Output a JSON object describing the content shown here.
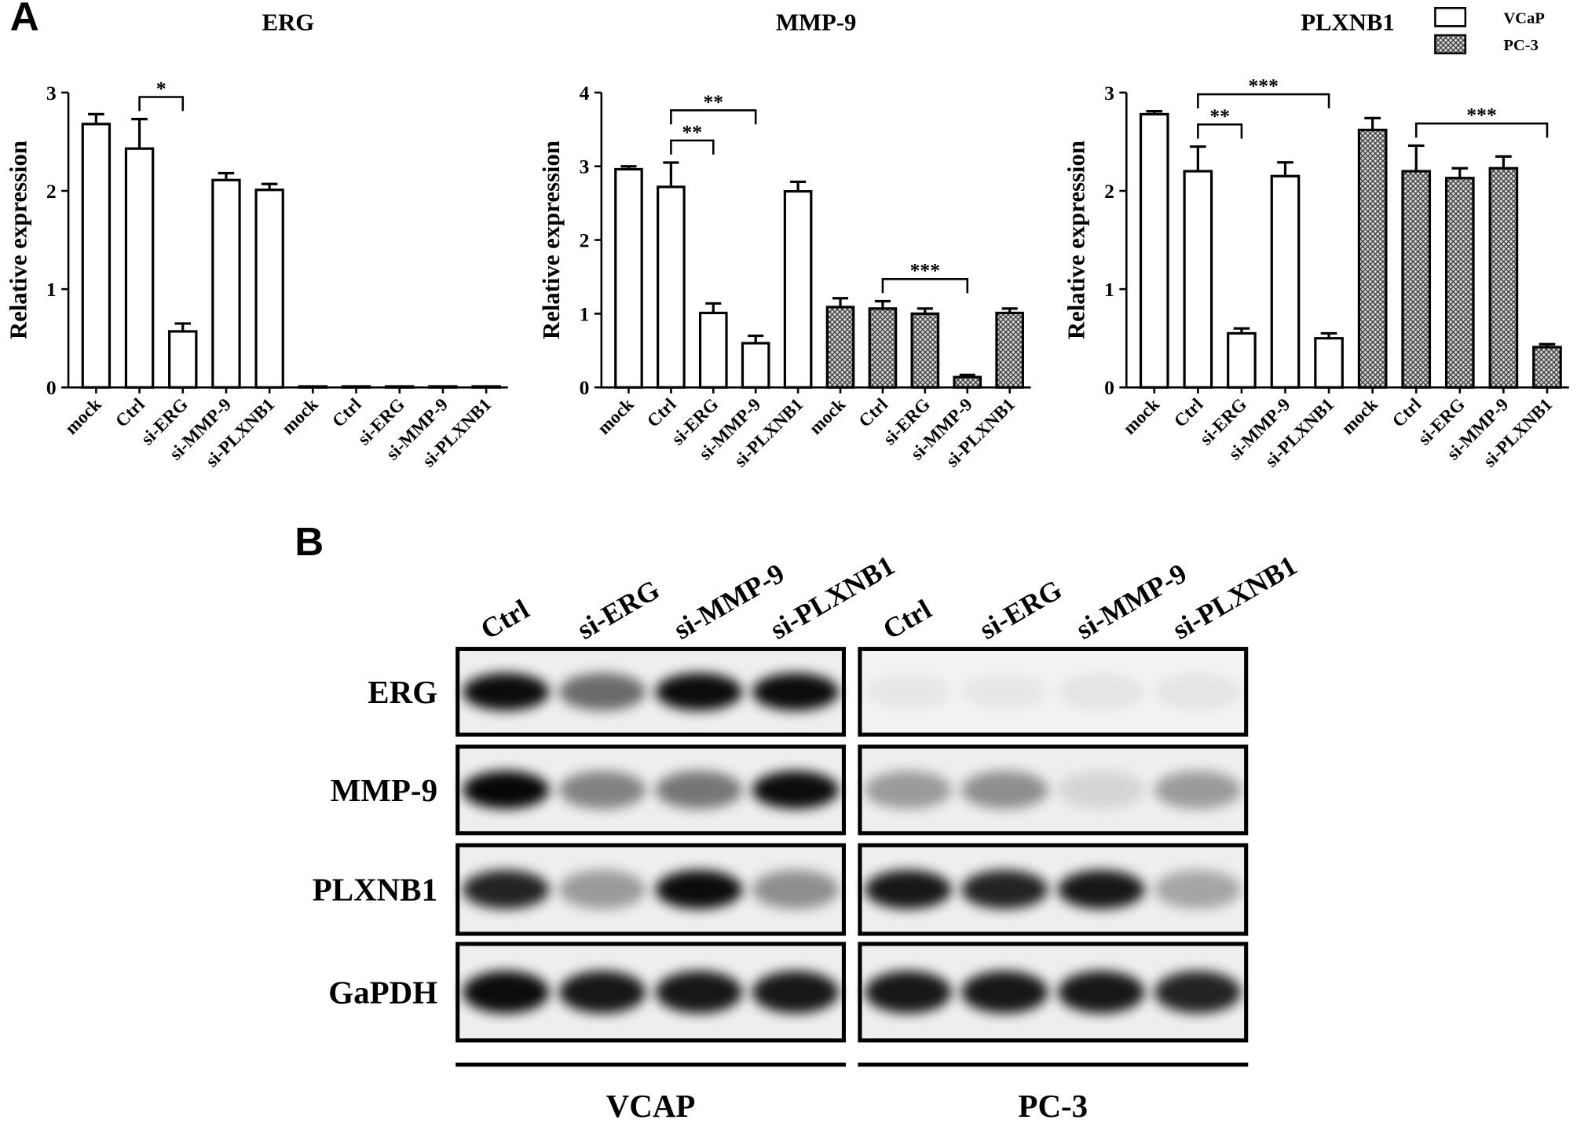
{
  "panel_labels": [
    "A",
    "B"
  ],
  "chart_data": [
    {
      "type": "bar",
      "title": "ERG",
      "y_label": "Relative expression",
      "categories": [
        "mock",
        "Ctrl",
        "si-ERG",
        "si-MMP-9",
        "si-PLXNB1",
        "mock",
        "Ctrl",
        "si-ERG",
        "si-MMP-9",
        "si-PLXNB1"
      ],
      "series": [
        {
          "color": "#ffffff",
          "values": [
            2.68,
            2.43,
            0.57,
            2.11,
            2.01,
            null,
            null,
            null,
            null,
            null
          ],
          "errors": [
            0.1,
            0.3,
            0.08,
            0.07,
            0.06,
            null,
            null,
            null,
            null,
            null
          ]
        },
        {
          "color": "#888888",
          "hatch": true,
          "values": [
            null,
            null,
            null,
            null,
            null,
            0.01,
            0.01,
            0.01,
            0.01,
            0.01
          ],
          "errors": [
            null,
            null,
            null,
            null,
            null,
            0,
            0,
            0,
            0,
            0
          ]
        }
      ],
      "ylim": [
        0,
        3
      ],
      "yticks": [
        0,
        1,
        2,
        3
      ],
      "brackets": [
        {
          "between": [
            1,
            2
          ],
          "label": "*"
        }
      ]
    },
    {
      "type": "bar",
      "title": "MMP-9",
      "y_label": "Relative expression",
      "categories": [
        "mock",
        "Ctrl",
        "si-ERG",
        "si-MMP-9",
        "si-PLXNB1",
        "mock",
        "Ctrl",
        "si-ERG",
        "si-MMP-9",
        "si-PLXNB1"
      ],
      "series": [
        {
          "color": "#ffffff",
          "values": [
            2.96,
            2.72,
            1.01,
            0.6,
            2.66,
            null,
            null,
            null,
            null,
            null
          ],
          "errors": [
            0.04,
            0.33,
            0.13,
            0.1,
            0.13,
            null,
            null,
            null,
            null,
            null
          ]
        },
        {
          "color": "#888888",
          "hatch": true,
          "values": [
            null,
            null,
            null,
            null,
            null,
            1.09,
            1.07,
            1.0,
            0.14,
            1.01
          ],
          "errors": [
            null,
            null,
            null,
            null,
            null,
            0.12,
            0.1,
            0.07,
            0.03,
            0.06
          ]
        }
      ],
      "ylim": [
        0,
        4
      ],
      "yticks": [
        0,
        1,
        2,
        3,
        4
      ],
      "brackets": [
        {
          "between": [
            1,
            2
          ],
          "label": "**"
        },
        {
          "between": [
            1,
            3
          ],
          "label": "**"
        },
        {
          "between": [
            6,
            8
          ],
          "label": "***"
        }
      ]
    },
    {
      "type": "bar",
      "title": "PLXNB1",
      "y_label": "Relative expression",
      "categories": [
        "mock",
        "Ctrl",
        "si-ERG",
        "si-MMP-9",
        "si-PLXNB1",
        "mock",
        "Ctrl",
        "si-ERG",
        "si-MMP-9",
        "si-PLXNB1"
      ],
      "series": [
        {
          "name": "VCaP",
          "color": "#ffffff",
          "values": [
            2.78,
            2.2,
            0.55,
            2.15,
            0.5,
            null,
            null,
            null,
            null,
            null
          ],
          "errors": [
            0.03,
            0.25,
            0.05,
            0.14,
            0.05,
            null,
            null,
            null,
            null,
            null
          ]
        },
        {
          "name": "PC-3",
          "color": "#888888",
          "hatch": true,
          "values": [
            null,
            null,
            null,
            null,
            null,
            2.62,
            2.2,
            2.13,
            2.23,
            0.41
          ],
          "errors": [
            null,
            null,
            null,
            null,
            null,
            0.12,
            0.26,
            0.1,
            0.12,
            0.03
          ]
        }
      ],
      "ylim": [
        0,
        3
      ],
      "yticks": [
        0,
        1,
        2,
        3
      ],
      "brackets": [
        {
          "between": [
            1,
            2
          ],
          "label": "**"
        },
        {
          "between": [
            1,
            4
          ],
          "label": "***"
        },
        {
          "between": [
            6,
            9
          ],
          "label": "***"
        }
      ]
    }
  ],
  "blot": {
    "lanes": [
      "Ctrl",
      "si-ERG",
      "si-MMP-9",
      "si-PLXNB1"
    ],
    "groups": [
      "VCAP",
      "PC-3"
    ],
    "rows": [
      {
        "label": "ERG",
        "bands": [
          [
            0.95,
            0.55,
            0.95,
            0.95
          ],
          [
            0.04,
            0.04,
            0.05,
            0.05
          ]
        ]
      },
      {
        "label": "MMP-9",
        "bands": [
          [
            0.97,
            0.45,
            0.5,
            0.95
          ],
          [
            0.35,
            0.4,
            0.1,
            0.35
          ]
        ]
      },
      {
        "label": "PLXNB1",
        "bands": [
          [
            0.85,
            0.35,
            0.95,
            0.4
          ],
          [
            0.9,
            0.85,
            0.9,
            0.3
          ]
        ]
      },
      {
        "label": "GaPDH",
        "bands": [
          [
            0.95,
            0.9,
            0.9,
            0.9
          ],
          [
            0.9,
            0.9,
            0.9,
            0.85
          ]
        ]
      }
    ]
  }
}
